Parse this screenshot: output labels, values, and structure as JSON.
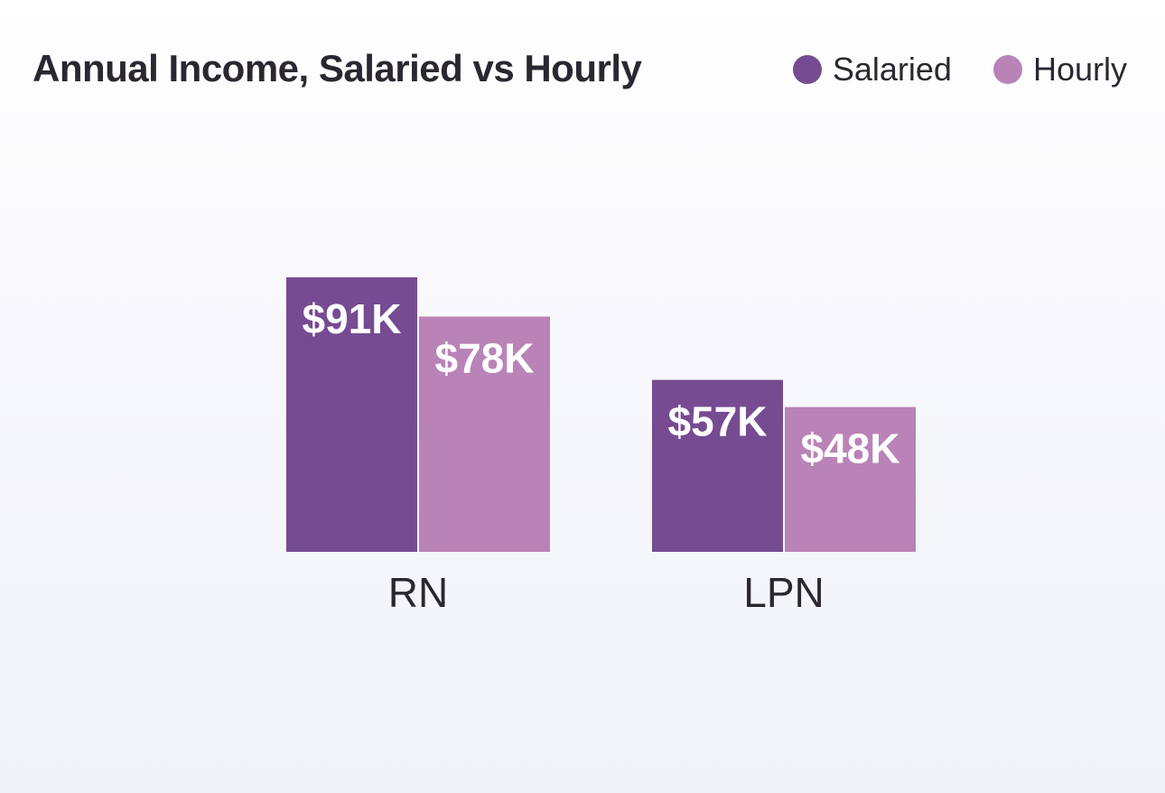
{
  "chart_data": {
    "type": "bar",
    "title": "Annual Income, Salaried vs Hourly",
    "categories": [
      "RN",
      "LPN"
    ],
    "series": [
      {
        "name": "Salaried",
        "color": "#764b92",
        "values": [
          91000,
          57000
        ],
        "labels": [
          "$91K",
          "$57K"
        ]
      },
      {
        "name": "Hourly",
        "color": "#b983b7",
        "values": [
          78000,
          48000
        ],
        "labels": [
          "$78K",
          "$48K"
        ]
      }
    ],
    "ylim": [
      0,
      100000
    ],
    "grid": false,
    "legend_position": "top-right"
  }
}
